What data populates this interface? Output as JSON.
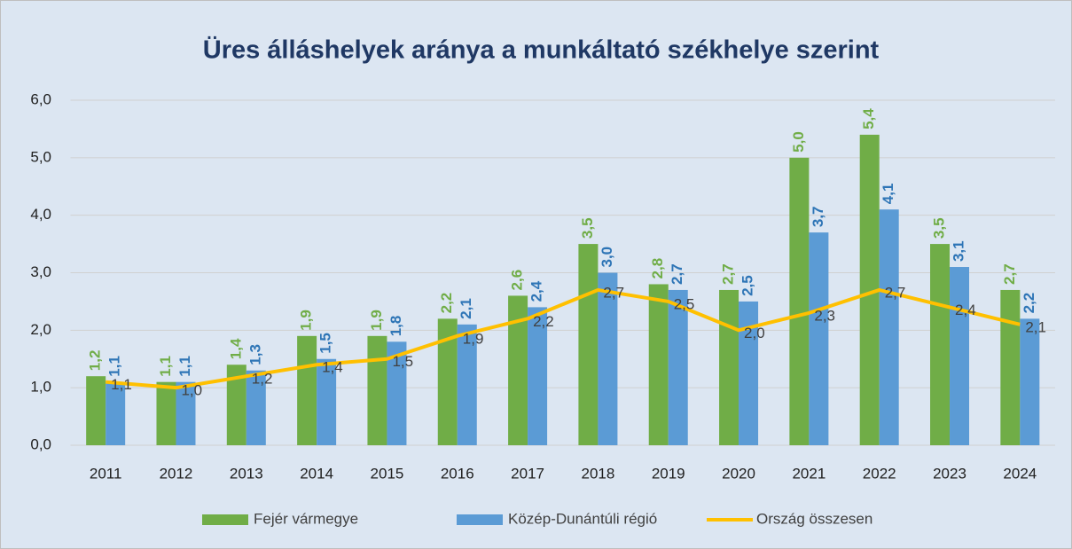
{
  "chart_data": {
    "type": "bar-line",
    "title": "Üres álláshelyek aránya a munkáltató székhelye szerint",
    "categories": [
      "2011",
      "2012",
      "2013",
      "2014",
      "2015",
      "2016",
      "2017",
      "2018",
      "2019",
      "2020",
      "2021",
      "2022",
      "2023",
      "2024"
    ],
    "series": [
      {
        "name": "Fejér vármegye",
        "type": "bar",
        "color": "#70ad47",
        "label_color": "#70ad47",
        "values": [
          1.2,
          1.1,
          1.4,
          1.9,
          1.9,
          2.2,
          2.6,
          3.5,
          2.8,
          2.7,
          5.0,
          5.4,
          3.5,
          2.7
        ],
        "value_labels": [
          "1,2",
          "1,1",
          "1,4",
          "1,9",
          "1,9",
          "2,2",
          "2,6",
          "3,5",
          "2,8",
          "2,7",
          "5,0",
          "5,4",
          "3,5",
          "2,7"
        ]
      },
      {
        "name": "Közép-Dunántúli régió",
        "type": "bar",
        "color": "#5b9bd5",
        "label_color": "#2e75b6",
        "values": [
          1.1,
          1.1,
          1.3,
          1.5,
          1.8,
          2.1,
          2.4,
          3.0,
          2.7,
          2.5,
          3.7,
          4.1,
          3.1,
          2.2
        ],
        "value_labels": [
          "1,1",
          "1,1",
          "1,3",
          "1,5",
          "1,8",
          "2,1",
          "2,4",
          "3,0",
          "2,7",
          "2,5",
          "3,7",
          "4,1",
          "3,1",
          "2,2"
        ]
      },
      {
        "name": "Ország összesen",
        "type": "line",
        "color": "#ffc000",
        "label_color": "#404040",
        "values": [
          1.1,
          1.0,
          1.2,
          1.4,
          1.5,
          1.9,
          2.2,
          2.7,
          2.5,
          2.0,
          2.3,
          2.7,
          2.4,
          2.1
        ],
        "value_labels": [
          "1,1",
          "1,0",
          "1,2",
          "1,4",
          "1,5",
          "1,9",
          "2,2",
          "2,7",
          "2,5",
          "2,0",
          "2,3",
          "2,7",
          "2,4",
          "2,1"
        ]
      }
    ],
    "ylim": [
      0,
      6
    ],
    "yticks": [
      {
        "value": 0,
        "label": "0,0"
      },
      {
        "value": 1,
        "label": "1,0"
      },
      {
        "value": 2,
        "label": "2,0"
      },
      {
        "value": 3,
        "label": "3,0"
      },
      {
        "value": 4,
        "label": "4,0"
      },
      {
        "value": 5,
        "label": "5,0"
      },
      {
        "value": 6,
        "label": "6,0"
      }
    ],
    "grid": true,
    "legend": "bottom"
  }
}
